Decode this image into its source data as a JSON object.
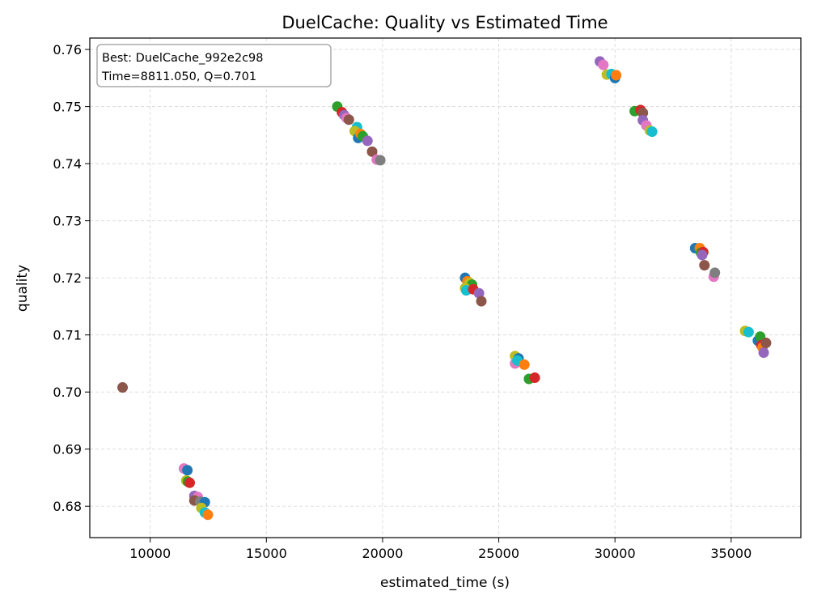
{
  "chart_data": {
    "type": "scatter",
    "title": "DuelCache: Quality vs Estimated Time",
    "xlabel": "estimated_time (s)",
    "ylabel": "quality",
    "xlim": [
      7400,
      38000
    ],
    "ylim": [
      0.6745,
      0.762
    ],
    "xticks": [
      10000,
      15000,
      20000,
      25000,
      30000,
      35000
    ],
    "xtick_labels": [
      "10000",
      "15000",
      "20000",
      "25000",
      "30000",
      "35000"
    ],
    "yticks": [
      0.68,
      0.69,
      0.7,
      0.71,
      0.72,
      0.73,
      0.74,
      0.75,
      0.76
    ],
    "ytick_labels": [
      "0.68",
      "0.69",
      "0.70",
      "0.71",
      "0.72",
      "0.73",
      "0.74",
      "0.75",
      "0.76"
    ],
    "grid": true,
    "annotation": {
      "line1": "Best: DuelCache_992e2c98",
      "line2": "Time=8811.050, Q=0.701",
      "placement": "top-left"
    },
    "palette": [
      "#1f77b4",
      "#ff7f0e",
      "#2ca02c",
      "#d62728",
      "#9467bd",
      "#8c564b",
      "#e377c2",
      "#7f7f7f",
      "#bcbd22",
      "#17becf"
    ],
    "points": [
      {
        "x": 8811,
        "y": 0.7008,
        "color": "#8c564b"
      },
      {
        "x": 11450,
        "y": 0.6866,
        "color": "#e377c2"
      },
      {
        "x": 11600,
        "y": 0.6863,
        "color": "#1f77b4"
      },
      {
        "x": 11550,
        "y": 0.6845,
        "color": "#bcbd22"
      },
      {
        "x": 11620,
        "y": 0.6843,
        "color": "#2ca02c"
      },
      {
        "x": 11700,
        "y": 0.6841,
        "color": "#d62728"
      },
      {
        "x": 11900,
        "y": 0.6818,
        "color": "#9467bd"
      },
      {
        "x": 12050,
        "y": 0.6816,
        "color": "#e377c2"
      },
      {
        "x": 11900,
        "y": 0.681,
        "color": "#8c564b"
      },
      {
        "x": 12150,
        "y": 0.6808,
        "color": "#7f7f7f"
      },
      {
        "x": 12350,
        "y": 0.6807,
        "color": "#1f77b4"
      },
      {
        "x": 12200,
        "y": 0.6797,
        "color": "#bcbd22"
      },
      {
        "x": 12350,
        "y": 0.6789,
        "color": "#17becf"
      },
      {
        "x": 12480,
        "y": 0.6785,
        "color": "#ff7f0e"
      },
      {
        "x": 18050,
        "y": 0.75,
        "color": "#2ca02c"
      },
      {
        "x": 18250,
        "y": 0.749,
        "color": "#d62728"
      },
      {
        "x": 18350,
        "y": 0.7485,
        "color": "#9467bd"
      },
      {
        "x": 18450,
        "y": 0.748,
        "color": "#e377c2"
      },
      {
        "x": 18550,
        "y": 0.7477,
        "color": "#8c564b"
      },
      {
        "x": 18900,
        "y": 0.7464,
        "color": "#17becf"
      },
      {
        "x": 18800,
        "y": 0.7457,
        "color": "#bcbd22"
      },
      {
        "x": 18950,
        "y": 0.7445,
        "color": "#1f77b4"
      },
      {
        "x": 19050,
        "y": 0.7452,
        "color": "#ff7f0e"
      },
      {
        "x": 19150,
        "y": 0.7448,
        "color": "#2ca02c"
      },
      {
        "x": 19350,
        "y": 0.744,
        "color": "#9467bd"
      },
      {
        "x": 19550,
        "y": 0.7421,
        "color": "#8c564b"
      },
      {
        "x": 19750,
        "y": 0.7407,
        "color": "#e377c2"
      },
      {
        "x": 19900,
        "y": 0.7406,
        "color": "#7f7f7f"
      },
      {
        "x": 29350,
        "y": 0.7579,
        "color": "#9467bd"
      },
      {
        "x": 29500,
        "y": 0.7573,
        "color": "#e377c2"
      },
      {
        "x": 29650,
        "y": 0.7556,
        "color": "#bcbd22"
      },
      {
        "x": 29850,
        "y": 0.7557,
        "color": "#17becf"
      },
      {
        "x": 30000,
        "y": 0.755,
        "color": "#1f77b4"
      },
      {
        "x": 30050,
        "y": 0.7555,
        "color": "#ff7f0e"
      },
      {
        "x": 30850,
        "y": 0.7492,
        "color": "#2ca02c"
      },
      {
        "x": 31100,
        "y": 0.7494,
        "color": "#d62728"
      },
      {
        "x": 31200,
        "y": 0.7489,
        "color": "#8c564b"
      },
      {
        "x": 31200,
        "y": 0.7476,
        "color": "#9467bd"
      },
      {
        "x": 31350,
        "y": 0.7467,
        "color": "#e377c2"
      },
      {
        "x": 31500,
        "y": 0.7458,
        "color": "#bcbd22"
      },
      {
        "x": 31600,
        "y": 0.7456,
        "color": "#17becf"
      },
      {
        "x": 23550,
        "y": 0.72,
        "color": "#1f77b4"
      },
      {
        "x": 23650,
        "y": 0.7194,
        "color": "#ff7f0e"
      },
      {
        "x": 23750,
        "y": 0.7191,
        "color": "#bcbd22"
      },
      {
        "x": 23850,
        "y": 0.7188,
        "color": "#2ca02c"
      },
      {
        "x": 23550,
        "y": 0.7182,
        "color": "#bcbd22"
      },
      {
        "x": 23600,
        "y": 0.7178,
        "color": "#17becf"
      },
      {
        "x": 23900,
        "y": 0.718,
        "color": "#d62728"
      },
      {
        "x": 24150,
        "y": 0.7173,
        "color": "#9467bd"
      },
      {
        "x": 24250,
        "y": 0.7159,
        "color": "#8c564b"
      },
      {
        "x": 25700,
        "y": 0.7063,
        "color": "#bcbd22"
      },
      {
        "x": 25850,
        "y": 0.7059,
        "color": "#1f77b4"
      },
      {
        "x": 25700,
        "y": 0.705,
        "color": "#e377c2"
      },
      {
        "x": 25800,
        "y": 0.7055,
        "color": "#17becf"
      },
      {
        "x": 26100,
        "y": 0.7048,
        "color": "#ff7f0e"
      },
      {
        "x": 26300,
        "y": 0.7023,
        "color": "#2ca02c"
      },
      {
        "x": 26550,
        "y": 0.7025,
        "color": "#d62728"
      },
      {
        "x": 33450,
        "y": 0.7252,
        "color": "#1f77b4"
      },
      {
        "x": 33650,
        "y": 0.7252,
        "color": "#ff7f0e"
      },
      {
        "x": 33700,
        "y": 0.7244,
        "color": "#2ca02c"
      },
      {
        "x": 33800,
        "y": 0.7245,
        "color": "#d62728"
      },
      {
        "x": 33750,
        "y": 0.724,
        "color": "#9467bd"
      },
      {
        "x": 33850,
        "y": 0.7222,
        "color": "#8c564b"
      },
      {
        "x": 34250,
        "y": 0.7202,
        "color": "#e377c2"
      },
      {
        "x": 34300,
        "y": 0.7209,
        "color": "#7f7f7f"
      },
      {
        "x": 35600,
        "y": 0.7107,
        "color": "#bcbd22"
      },
      {
        "x": 35750,
        "y": 0.7105,
        "color": "#17becf"
      },
      {
        "x": 36150,
        "y": 0.709,
        "color": "#1f77b4"
      },
      {
        "x": 36250,
        "y": 0.7097,
        "color": "#2ca02c"
      },
      {
        "x": 36300,
        "y": 0.7082,
        "color": "#d62728"
      },
      {
        "x": 36350,
        "y": 0.7078,
        "color": "#ff7f0e"
      },
      {
        "x": 36400,
        "y": 0.7069,
        "color": "#9467bd"
      },
      {
        "x": 36500,
        "y": 0.7086,
        "color": "#8c564b"
      }
    ]
  }
}
